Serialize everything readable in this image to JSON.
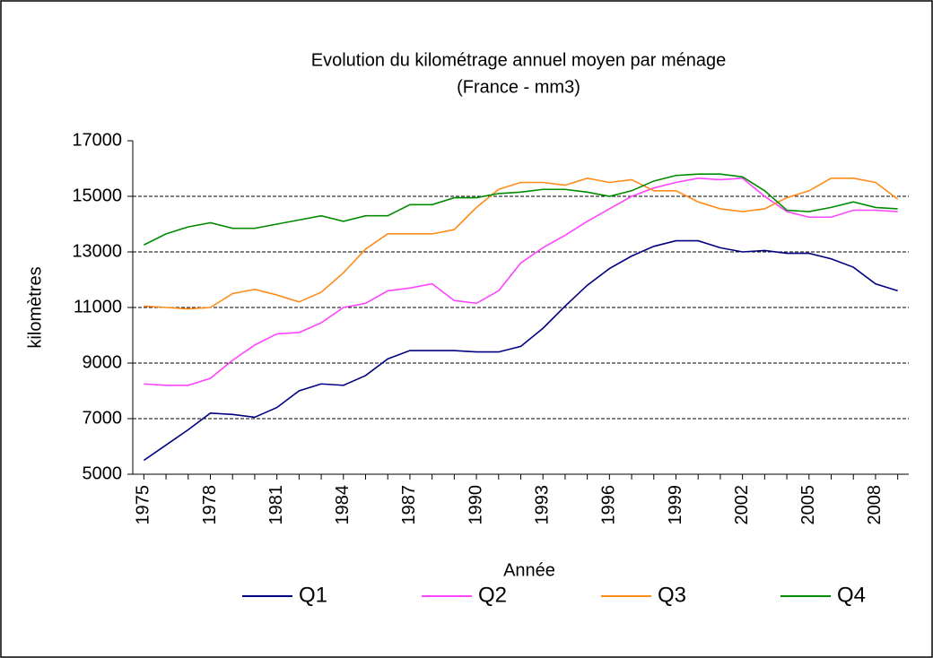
{
  "chart_data": {
    "type": "line",
    "title": "Evolution  du kilométrage annuel moyen par ménage",
    "subtitle": "(France - mm3)",
    "x_label": "Année",
    "y_label": "kilomètres",
    "x": [
      1975,
      1976,
      1977,
      1978,
      1979,
      1980,
      1981,
      1982,
      1983,
      1984,
      1985,
      1986,
      1987,
      1988,
      1989,
      1990,
      1991,
      1992,
      1993,
      1994,
      1995,
      1996,
      1997,
      1998,
      1999,
      2000,
      2001,
      2002,
      2003,
      2004,
      2005,
      2006,
      2007,
      2008,
      2009
    ],
    "xlim": [
      1974.5,
      2009.5
    ],
    "xticks": [
      1975,
      1978,
      1981,
      1984,
      1987,
      1990,
      1993,
      1996,
      1999,
      2002,
      2005,
      2008
    ],
    "ylim": [
      5000,
      17000
    ],
    "yticks": [
      5000,
      7000,
      9000,
      11000,
      13000,
      15000,
      17000
    ],
    "grid": true,
    "legend": "bottom",
    "series": [
      {
        "name": "Q1",
        "color": "#000080",
        "values": [
          5500,
          6050,
          6600,
          7200,
          7150,
          7050,
          7400,
          8000,
          8250,
          8200,
          8550,
          9150,
          9450,
          9450,
          9450,
          9400,
          9400,
          9600,
          10250,
          11050,
          11800,
          12400,
          12850,
          13200,
          13400,
          13400,
          13150,
          13000,
          13050,
          12950,
          12950,
          12750,
          12450,
          11850,
          11600
        ]
      },
      {
        "name": "Q2",
        "color": "#ff44ff",
        "values": [
          8250,
          8200,
          8200,
          8450,
          9100,
          9650,
          10050,
          10100,
          10450,
          11000,
          11150,
          11600,
          11700,
          11850,
          11250,
          11150,
          11600,
          12600,
          13150,
          13600,
          14100,
          14550,
          15000,
          15300,
          15500,
          15650,
          15600,
          15650,
          15000,
          14450,
          14250,
          14250,
          14500,
          14500,
          14450
        ]
      },
      {
        "name": "Q3",
        "color": "#ff8c1a",
        "values": [
          11050,
          11000,
          10950,
          11000,
          11500,
          11650,
          11450,
          11200,
          11550,
          12250,
          13100,
          13650,
          13650,
          13650,
          13800,
          14600,
          15250,
          15500,
          15500,
          15400,
          15650,
          15500,
          15600,
          15200,
          15200,
          14800,
          14550,
          14450,
          14550,
          14950,
          15200,
          15650,
          15650,
          15500,
          14900
        ]
      },
      {
        "name": "Q4",
        "color": "#008c00",
        "values": [
          13250,
          13650,
          13900,
          14050,
          13850,
          13850,
          14000,
          14150,
          14300,
          14100,
          14300,
          14300,
          14700,
          14700,
          14950,
          14950,
          15100,
          15150,
          15250,
          15250,
          15150,
          15000,
          15200,
          15550,
          15750,
          15800,
          15800,
          15700,
          15200,
          14500,
          14450,
          14600,
          14800,
          14600,
          14550
        ]
      }
    ]
  }
}
